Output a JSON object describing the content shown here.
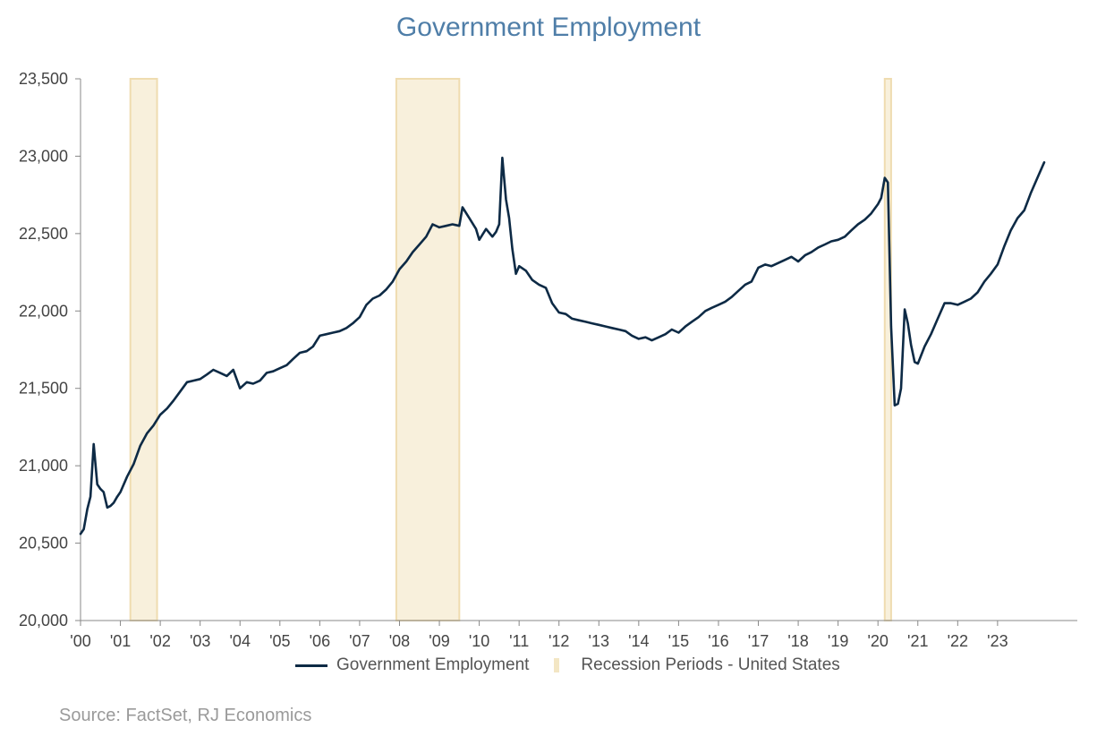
{
  "chart_data": {
    "type": "line",
    "title": "Government Employment",
    "xlabel": "",
    "ylabel": "",
    "ylim": [
      20000,
      23500
    ],
    "yticks": [
      "20,000",
      "20,500",
      "21,000",
      "21,500",
      "22,000",
      "22,500",
      "23,000",
      "23,500"
    ],
    "ytick_values": [
      20000,
      20500,
      21000,
      21500,
      22000,
      22500,
      23000,
      23500
    ],
    "xlim": [
      2000.0,
      2025.0
    ],
    "xticks": [
      "'00",
      "'01",
      "'02",
      "'03",
      "'04",
      "'05",
      "'06",
      "'07",
      "'08",
      "'09",
      "'10",
      "'11",
      "'12",
      "'13",
      "'14",
      "'15",
      "'16",
      "'17",
      "'18",
      "'19",
      "'20",
      "'21",
      "'22",
      "'23"
    ],
    "xtick_values": [
      2000,
      2001,
      2002,
      2003,
      2004,
      2005,
      2006,
      2007,
      2008,
      2009,
      2010,
      2011,
      2012,
      2013,
      2014,
      2015,
      2016,
      2017,
      2018,
      2019,
      2020,
      2021,
      2022,
      2023
    ],
    "grid": false,
    "legend": "bottom",
    "series": [
      {
        "name": "Government Employment",
        "color": "#0d2a45",
        "points": [
          [
            2000.0,
            20560
          ],
          [
            2000.08,
            20590
          ],
          [
            2000.17,
            20720
          ],
          [
            2000.25,
            20800
          ],
          [
            2000.33,
            21140
          ],
          [
            2000.42,
            20880
          ],
          [
            2000.5,
            20850
          ],
          [
            2000.58,
            20830
          ],
          [
            2000.67,
            20730
          ],
          [
            2000.75,
            20740
          ],
          [
            2000.83,
            20760
          ],
          [
            2000.92,
            20800
          ],
          [
            2001.0,
            20830
          ],
          [
            2001.17,
            20930
          ],
          [
            2001.33,
            21010
          ],
          [
            2001.5,
            21130
          ],
          [
            2001.67,
            21210
          ],
          [
            2001.83,
            21260
          ],
          [
            2002.0,
            21330
          ],
          [
            2002.17,
            21370
          ],
          [
            2002.33,
            21420
          ],
          [
            2002.5,
            21480
          ],
          [
            2002.67,
            21540
          ],
          [
            2002.83,
            21550
          ],
          [
            2003.0,
            21560
          ],
          [
            2003.17,
            21590
          ],
          [
            2003.33,
            21620
          ],
          [
            2003.5,
            21600
          ],
          [
            2003.67,
            21580
          ],
          [
            2003.83,
            21620
          ],
          [
            2004.0,
            21500
          ],
          [
            2004.17,
            21540
          ],
          [
            2004.33,
            21530
          ],
          [
            2004.5,
            21550
          ],
          [
            2004.67,
            21600
          ],
          [
            2004.83,
            21610
          ],
          [
            2005.0,
            21630
          ],
          [
            2005.17,
            21650
          ],
          [
            2005.33,
            21690
          ],
          [
            2005.5,
            21730
          ],
          [
            2005.67,
            21740
          ],
          [
            2005.83,
            21770
          ],
          [
            2006.0,
            21840
          ],
          [
            2006.17,
            21850
          ],
          [
            2006.33,
            21860
          ],
          [
            2006.5,
            21870
          ],
          [
            2006.67,
            21890
          ],
          [
            2006.83,
            21920
          ],
          [
            2007.0,
            21960
          ],
          [
            2007.17,
            22040
          ],
          [
            2007.33,
            22080
          ],
          [
            2007.5,
            22100
          ],
          [
            2007.67,
            22140
          ],
          [
            2007.83,
            22190
          ],
          [
            2008.0,
            22270
          ],
          [
            2008.17,
            22320
          ],
          [
            2008.33,
            22380
          ],
          [
            2008.5,
            22430
          ],
          [
            2008.67,
            22480
          ],
          [
            2008.83,
            22560
          ],
          [
            2009.0,
            22540
          ],
          [
            2009.17,
            22550
          ],
          [
            2009.33,
            22560
          ],
          [
            2009.5,
            22550
          ],
          [
            2009.58,
            22670
          ],
          [
            2009.75,
            22600
          ],
          [
            2009.92,
            22530
          ],
          [
            2010.0,
            22460
          ],
          [
            2010.17,
            22530
          ],
          [
            2010.33,
            22480
          ],
          [
            2010.42,
            22510
          ],
          [
            2010.5,
            22560
          ],
          [
            2010.58,
            22990
          ],
          [
            2010.67,
            22720
          ],
          [
            2010.75,
            22600
          ],
          [
            2010.83,
            22400
          ],
          [
            2010.92,
            22240
          ],
          [
            2011.0,
            22290
          ],
          [
            2011.17,
            22260
          ],
          [
            2011.33,
            22200
          ],
          [
            2011.5,
            22170
          ],
          [
            2011.67,
            22150
          ],
          [
            2011.83,
            22050
          ],
          [
            2012.0,
            21990
          ],
          [
            2012.17,
            21980
          ],
          [
            2012.33,
            21950
          ],
          [
            2012.5,
            21940
          ],
          [
            2012.67,
            21930
          ],
          [
            2012.83,
            21920
          ],
          [
            2013.0,
            21910
          ],
          [
            2013.17,
            21900
          ],
          [
            2013.33,
            21890
          ],
          [
            2013.5,
            21880
          ],
          [
            2013.67,
            21870
          ],
          [
            2013.83,
            21840
          ],
          [
            2014.0,
            21820
          ],
          [
            2014.17,
            21830
          ],
          [
            2014.33,
            21810
          ],
          [
            2014.5,
            21830
          ],
          [
            2014.67,
            21850
          ],
          [
            2014.83,
            21880
          ],
          [
            2015.0,
            21860
          ],
          [
            2015.17,
            21900
          ],
          [
            2015.33,
            21930
          ],
          [
            2015.5,
            21960
          ],
          [
            2015.67,
            22000
          ],
          [
            2015.83,
            22020
          ],
          [
            2016.0,
            22040
          ],
          [
            2016.17,
            22060
          ],
          [
            2016.33,
            22090
          ],
          [
            2016.5,
            22130
          ],
          [
            2016.67,
            22170
          ],
          [
            2016.83,
            22190
          ],
          [
            2017.0,
            22280
          ],
          [
            2017.17,
            22300
          ],
          [
            2017.33,
            22290
          ],
          [
            2017.5,
            22310
          ],
          [
            2017.67,
            22330
          ],
          [
            2017.83,
            22350
          ],
          [
            2018.0,
            22320
          ],
          [
            2018.17,
            22360
          ],
          [
            2018.33,
            22380
          ],
          [
            2018.5,
            22410
          ],
          [
            2018.67,
            22430
          ],
          [
            2018.83,
            22450
          ],
          [
            2019.0,
            22460
          ],
          [
            2019.17,
            22480
          ],
          [
            2019.33,
            22520
          ],
          [
            2019.5,
            22560
          ],
          [
            2019.67,
            22590
          ],
          [
            2019.83,
            22630
          ],
          [
            2020.0,
            22690
          ],
          [
            2020.08,
            22730
          ],
          [
            2020.17,
            22860
          ],
          [
            2020.25,
            22830
          ],
          [
            2020.33,
            21900
          ],
          [
            2020.42,
            21390
          ],
          [
            2020.5,
            21400
          ],
          [
            2020.58,
            21500
          ],
          [
            2020.67,
            22010
          ],
          [
            2020.75,
            21920
          ],
          [
            2020.83,
            21780
          ],
          [
            2020.92,
            21670
          ],
          [
            2021.0,
            21660
          ],
          [
            2021.17,
            21770
          ],
          [
            2021.33,
            21850
          ],
          [
            2021.5,
            21950
          ],
          [
            2021.67,
            22050
          ],
          [
            2021.83,
            22050
          ],
          [
            2022.0,
            22040
          ],
          [
            2022.17,
            22060
          ],
          [
            2022.33,
            22080
          ],
          [
            2022.5,
            22120
          ],
          [
            2022.67,
            22190
          ],
          [
            2022.83,
            22240
          ],
          [
            2023.0,
            22300
          ],
          [
            2023.17,
            22420
          ],
          [
            2023.33,
            22520
          ],
          [
            2023.5,
            22600
          ],
          [
            2023.67,
            22650
          ],
          [
            2023.83,
            22760
          ],
          [
            2024.0,
            22860
          ],
          [
            2024.17,
            22960
          ]
        ]
      },
      {
        "name": "Recession Periods - United States",
        "color": "#f3e6c4",
        "periods": [
          [
            2001.25,
            2001.92
          ],
          [
            2007.92,
            2009.5
          ],
          [
            2020.17,
            2020.33
          ]
        ]
      }
    ]
  },
  "source": "Source: FactSet, RJ Economics"
}
